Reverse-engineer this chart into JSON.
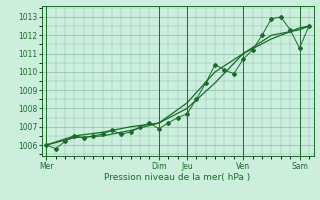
{
  "title": "",
  "xlabel": "Pression niveau de la mer( hPa )",
  "ylabel": "",
  "bg_color": "#cceedd",
  "grid_color": "#88bbaa",
  "line_color": "#1a6b2a",
  "tick_color": "#1a6b2a",
  "ylim": [
    1005.4,
    1013.6
  ],
  "yticks": [
    1006,
    1007,
    1008,
    1009,
    1010,
    1011,
    1012,
    1013
  ],
  "day_labels": [
    "Mer",
    "Dim",
    "Jeu",
    "Ven",
    "Sam"
  ],
  "day_positions": [
    0,
    12,
    15,
    21,
    27
  ],
  "xlim": [
    -0.5,
    28.5
  ],
  "series1_x": [
    0,
    1,
    2,
    3,
    4,
    5,
    6,
    7,
    8,
    9,
    10,
    11,
    12,
    13,
    14,
    15,
    16,
    17,
    18,
    19,
    20,
    21,
    22,
    23,
    24,
    25,
    26,
    27,
    28
  ],
  "series1_y": [
    1006.0,
    1005.8,
    1006.2,
    1006.5,
    1006.4,
    1006.5,
    1006.6,
    1006.8,
    1006.6,
    1006.7,
    1007.0,
    1007.2,
    1006.9,
    1007.2,
    1007.5,
    1007.7,
    1008.5,
    1009.4,
    1010.4,
    1010.1,
    1009.9,
    1010.7,
    1011.2,
    1012.0,
    1012.9,
    1013.0,
    1012.3,
    1011.3,
    1012.5
  ],
  "series2_x": [
    0,
    3,
    6,
    9,
    12,
    15,
    18,
    21,
    24,
    27,
    28
  ],
  "series2_y": [
    1006.0,
    1006.5,
    1006.7,
    1007.0,
    1007.2,
    1008.0,
    1009.4,
    1011.0,
    1012.0,
    1012.3,
    1012.5
  ],
  "series3_x": [
    0,
    3,
    6,
    9,
    12,
    15,
    18,
    21,
    24,
    27,
    28
  ],
  "series3_y": [
    1006.0,
    1006.4,
    1006.5,
    1006.8,
    1007.2,
    1008.3,
    1010.0,
    1011.0,
    1011.8,
    1012.4,
    1012.5
  ]
}
